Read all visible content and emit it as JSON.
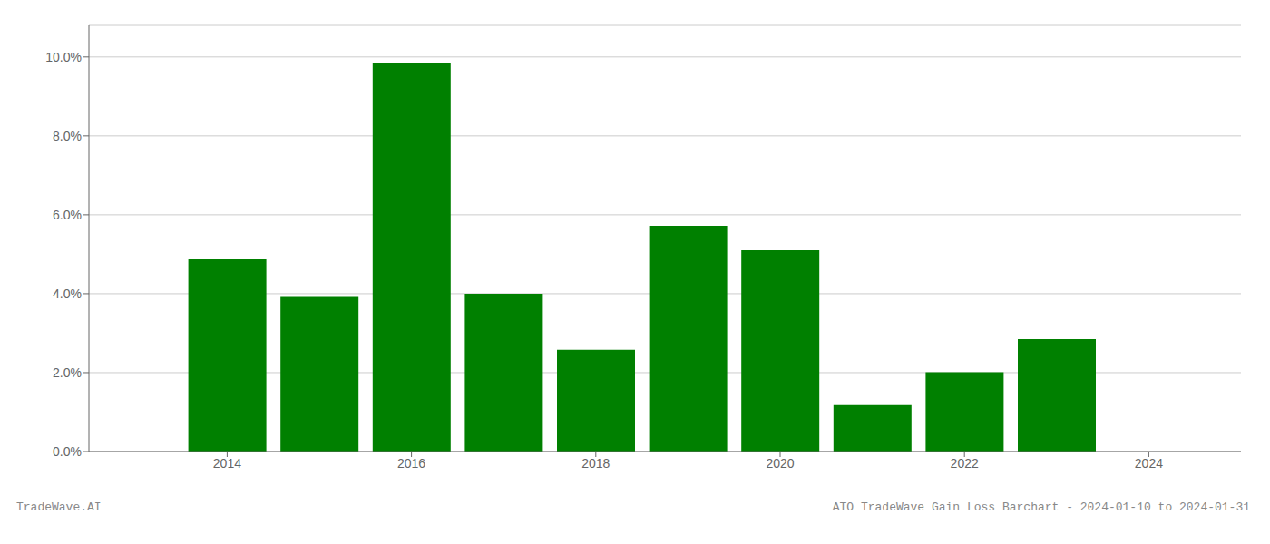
{
  "chart_data": {
    "type": "bar",
    "x": [
      2014,
      2015,
      2016,
      2017,
      2018,
      2019,
      2020,
      2021,
      2022,
      2023
    ],
    "values": [
      0.0487,
      0.0392,
      0.0985,
      0.04,
      0.0258,
      0.0572,
      0.051,
      0.0118,
      0.0201,
      0.0285
    ],
    "color": "#008000",
    "xlim": [
      2012.5,
      2025.0
    ],
    "xticks": [
      2014,
      2016,
      2018,
      2020,
      2022,
      2024
    ],
    "ylim": [
      0,
      0.108
    ],
    "yticks": [
      {
        "value": 0.0,
        "label": "0.0%"
      },
      {
        "value": 0.02,
        "label": "2.0%"
      },
      {
        "value": 0.04,
        "label": "4.0%"
      },
      {
        "value": 0.06,
        "label": "6.0%"
      },
      {
        "value": 0.08,
        "label": "8.0%"
      },
      {
        "value": 0.1,
        "label": "10.0%"
      }
    ],
    "grid": true,
    "annotations": [
      "TradeWave.AI",
      "ATO TradeWave Gain Loss Barchart - 2024-01-10 to 2024-01-31"
    ]
  }
}
